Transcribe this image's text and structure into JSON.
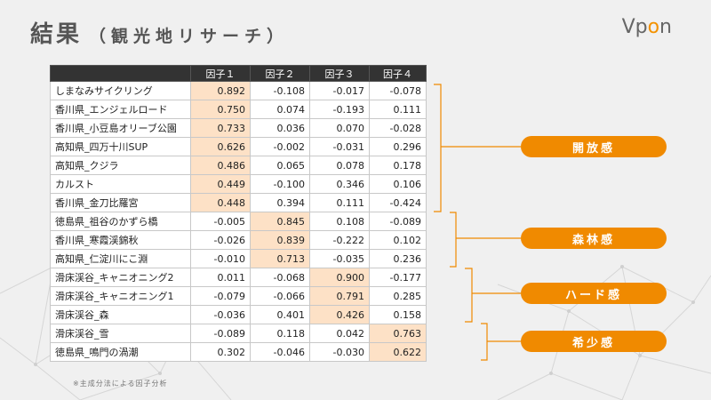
{
  "page": {
    "title": "結果",
    "subtitle": "（観光地リサーチ）",
    "logo": {
      "prefix": "Vp",
      "accent": "o",
      "suffix": "n"
    },
    "note": "※主成分法による因子分析"
  },
  "table": {
    "headers": [
      "",
      "因子１",
      "因子２",
      "因子３",
      "因子４"
    ],
    "rows": [
      {
        "name": "しまなみサイクリング",
        "values": [
          "0.892",
          "-0.108",
          "-0.017",
          "-0.078"
        ],
        "highlight": 0
      },
      {
        "name": "香川県_エンジェルロード",
        "values": [
          "0.750",
          "0.074",
          "-0.193",
          "0.111"
        ],
        "highlight": 0
      },
      {
        "name": "香川県_小豆島オリーブ公園",
        "values": [
          "0.733",
          "0.036",
          "0.070",
          "-0.028"
        ],
        "highlight": 0
      },
      {
        "name": "高知県_四万十川SUP",
        "values": [
          "0.626",
          "-0.002",
          "-0.031",
          "0.296"
        ],
        "highlight": 0
      },
      {
        "name": "高知県_クジラ",
        "values": [
          "0.486",
          "0.065",
          "0.078",
          "0.178"
        ],
        "highlight": 0
      },
      {
        "name": "カルスト",
        "values": [
          "0.449",
          "-0.100",
          "0.346",
          "0.106"
        ],
        "highlight": 0
      },
      {
        "name": "香川県_金刀比羅宮",
        "values": [
          "0.448",
          "0.394",
          "0.111",
          "-0.424"
        ],
        "highlight": 0
      },
      {
        "name": "徳島県_祖谷のかずら橋",
        "values": [
          "-0.005",
          "0.845",
          "0.108",
          "-0.089"
        ],
        "highlight": 1
      },
      {
        "name": "香川県_寒霞渓錦秋",
        "values": [
          "-0.026",
          "0.839",
          "-0.222",
          "0.102"
        ],
        "highlight": 1
      },
      {
        "name": "高知県_仁淀川にこ淵",
        "values": [
          "-0.010",
          "0.713",
          "-0.035",
          "0.236"
        ],
        "highlight": 1
      },
      {
        "name": "滑床渓谷_キャニオニング2",
        "values": [
          "0.011",
          "-0.068",
          "0.900",
          "-0.177"
        ],
        "highlight": 2
      },
      {
        "name": "滑床渓谷_キャニオニング1",
        "values": [
          "-0.079",
          "-0.066",
          "0.791",
          "0.285"
        ],
        "highlight": 2
      },
      {
        "name": "滑床渓谷_森",
        "values": [
          "-0.036",
          "0.401",
          "0.426",
          "0.158"
        ],
        "highlight": 2
      },
      {
        "name": "滑床渓谷_雪",
        "values": [
          "-0.089",
          "0.118",
          "0.042",
          "0.763"
        ],
        "highlight": 3
      },
      {
        "name": "徳島県_鳴門の渦潮",
        "values": [
          "0.302",
          "-0.046",
          "-0.030",
          "0.622"
        ],
        "highlight": 3
      }
    ]
  },
  "labels": [
    "開放感",
    "森林感",
    "ハード感",
    "希少感"
  ],
  "colors": {
    "accent": "#f08a00",
    "highlight": "#fde1c6",
    "header": "#333333"
  }
}
